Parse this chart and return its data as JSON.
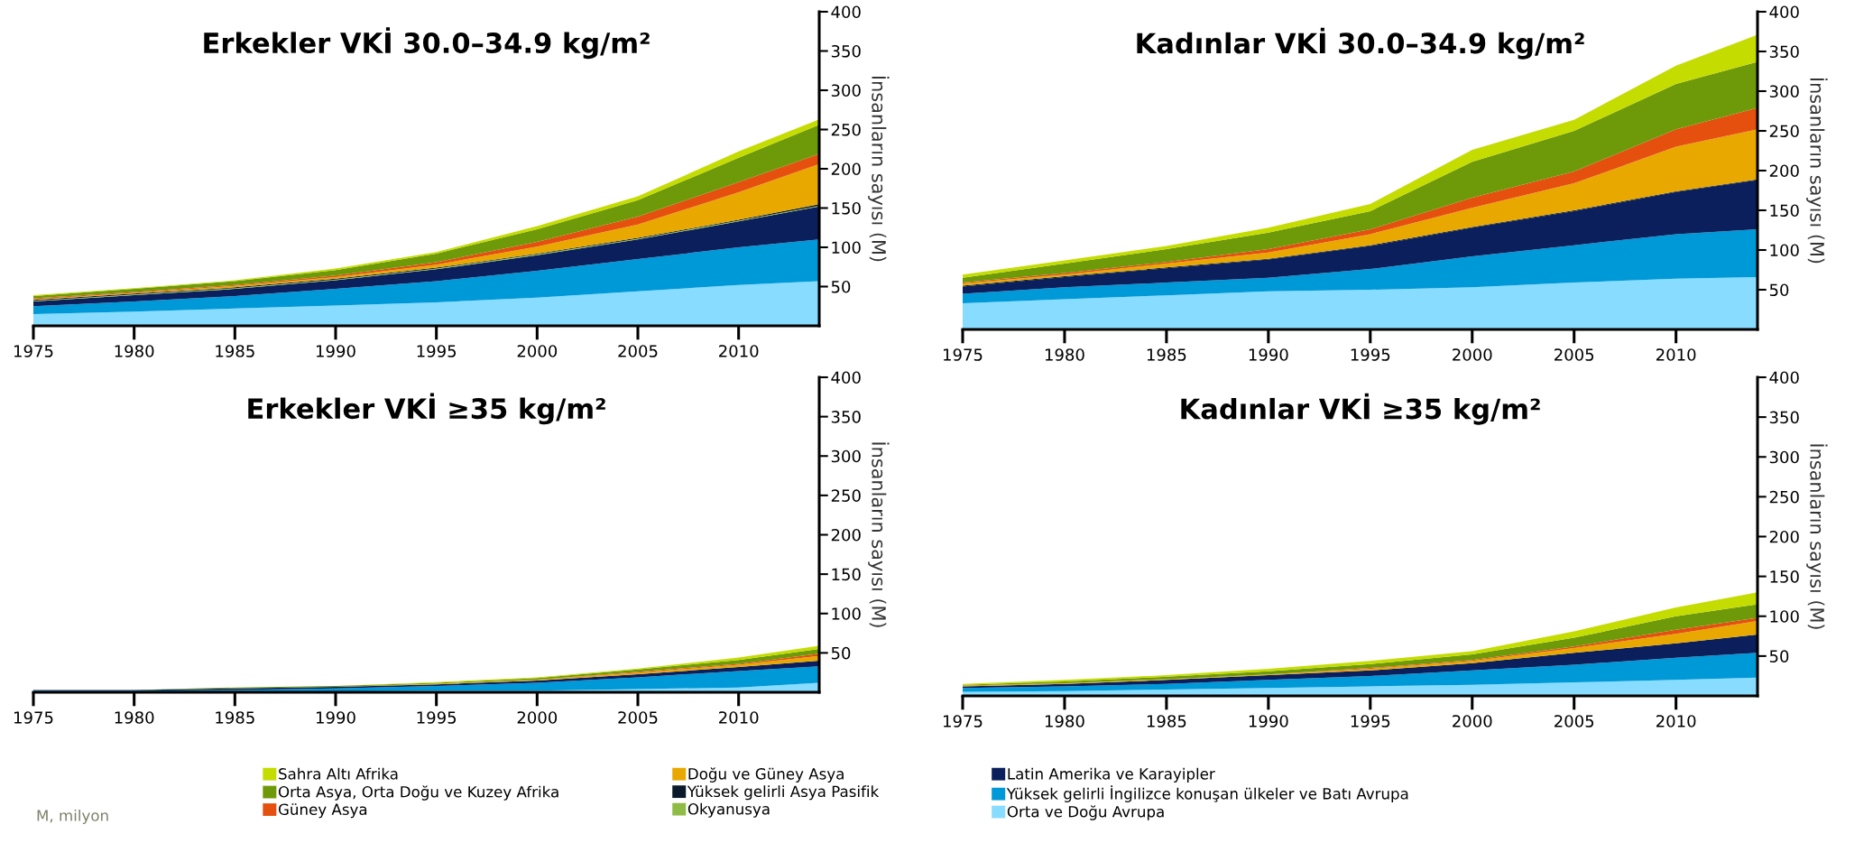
{
  "chart_data": [
    {
      "type": "area",
      "stacked": true,
      "title": "Erkekler VKİ 30.0–34.9 kg/m²",
      "ylabel": "İnsanların sayısı (M)",
      "x": [
        1975,
        1980,
        1985,
        1990,
        1995,
        2000,
        2005,
        2010,
        2014
      ],
      "xlim": [
        1975,
        2014
      ],
      "xticks": [
        1975,
        1980,
        1985,
        1990,
        1995,
        2000,
        2005,
        2010
      ],
      "ylim": [
        0,
        400
      ],
      "yticks": [
        50,
        100,
        150,
        200,
        250,
        300,
        350,
        400
      ],
      "grid": false,
      "legend": "bottom",
      "annotations": [
        "M, milyon"
      ],
      "series": [
        {
          "name": "Orta ve Doğu Avrupa",
          "color": "#87dcff",
          "values": [
            15,
            18,
            22,
            26,
            30,
            36,
            44,
            52,
            57
          ]
        },
        {
          "name": "Yüksek gelirli İngilizce konuşan ülkeler ve Batı Avrupa",
          "color": "#0099d8",
          "values": [
            10,
            13,
            16,
            21,
            27,
            34,
            41,
            48,
            53
          ]
        },
        {
          "name": "Latin Amerika ve Karayipler",
          "color": "#0b1f5c",
          "values": [
            6,
            8,
            9,
            11,
            15,
            20,
            25,
            33,
            42
          ]
        },
        {
          "name": "Okyanusya",
          "color": "#8fbc45",
          "values": [
            1,
            1,
            1,
            1,
            1,
            1,
            1,
            1,
            1
          ]
        },
        {
          "name": "Yüksek gelirli Asya Pasifik",
          "color": "#0a1a2a",
          "values": [
            1,
            1,
            1,
            1,
            1,
            1,
            1,
            1,
            2
          ]
        },
        {
          "name": "Doğu ve Güney Asya",
          "color": "#e8a800",
          "values": [
            1,
            1,
            2,
            2,
            4,
            9,
            17,
            35,
            51
          ]
        },
        {
          "name": "Güney Asya",
          "color": "#e5500f",
          "values": [
            1,
            1,
            1,
            2,
            3,
            6,
            10,
            13,
            13
          ]
        },
        {
          "name": "Orta Asya, Orta Doğu ve Kuzey Afrika",
          "color": "#6e9a0a",
          "values": [
            3,
            4,
            5,
            7,
            11,
            16,
            21,
            31,
            37
          ]
        },
        {
          "name": "Sahra Altı Afrika",
          "color": "#c4dc00",
          "values": [
            1,
            1,
            1,
            2,
            2,
            4,
            5,
            8,
            7
          ]
        }
      ]
    },
    {
      "type": "area",
      "stacked": true,
      "title": "Kadınlar VKİ 30.0–34.9 kg/m²",
      "ylabel": "İnsanların sayısı (M)",
      "x": [
        1975,
        1980,
        1985,
        1990,
        1995,
        2000,
        2005,
        2010,
        2014
      ],
      "xlim": [
        1975,
        2014
      ],
      "xticks": [
        1975,
        1980,
        1985,
        1990,
        1995,
        2000,
        2005,
        2010
      ],
      "ylim": [
        0,
        400
      ],
      "yticks": [
        50,
        100,
        150,
        200,
        250,
        300,
        350,
        400
      ],
      "grid": false,
      "series": [
        {
          "color": "#87dcff",
          "values": [
            33,
            38,
            43,
            48,
            50,
            53,
            59,
            64,
            66
          ]
        },
        {
          "color": "#0099d8",
          "values": [
            12,
            15,
            16,
            17,
            26,
            39,
            47,
            56,
            60
          ]
        },
        {
          "color": "#0b1f5c",
          "values": [
            9,
            13,
            18,
            23,
            29,
            36,
            43,
            53,
            62
          ]
        },
        {
          "color": "#0a1a2a",
          "values": [
            1,
            1,
            1,
            1,
            1,
            1,
            1,
            1,
            1
          ]
        },
        {
          "color": "#e8a800",
          "values": [
            3,
            2,
            5,
            8,
            14,
            24,
            34,
            56,
            63
          ]
        },
        {
          "color": "#e5500f",
          "values": [
            1,
            2,
            2,
            4,
            6,
            13,
            15,
            22,
            27
          ]
        },
        {
          "color": "#6e9a0a",
          "values": [
            6,
            12,
            16,
            21,
            23,
            45,
            51,
            57,
            58
          ]
        },
        {
          "color": "#c4dc00",
          "values": [
            4,
            4,
            4,
            6,
            9,
            15,
            14,
            23,
            34
          ]
        }
      ]
    },
    {
      "type": "area",
      "stacked": true,
      "title": "Erkekler VKİ ≥35 kg/m²",
      "ylabel": "İnsanların sayısı (M)",
      "x": [
        1975,
        1980,
        1985,
        1990,
        1995,
        2000,
        2005,
        2010,
        2014
      ],
      "xlim": [
        1975,
        2014
      ],
      "xticks": [
        1975,
        1980,
        1985,
        1990,
        1995,
        2000,
        2005,
        2010
      ],
      "ylim": [
        0,
        400
      ],
      "yticks": [
        50,
        100,
        150,
        200,
        250,
        300,
        350,
        400
      ],
      "grid": false,
      "series": [
        {
          "color": "#87dcff",
          "values": [
            1,
            1,
            1,
            1,
            2,
            2,
            4,
            6,
            12
          ]
        },
        {
          "color": "#0099d8",
          "values": [
            1,
            1,
            2,
            4,
            6,
            10,
            15,
            21,
            21
          ]
        },
        {
          "color": "#0b1f5c",
          "values": [
            1,
            1,
            2,
            2,
            2,
            3,
            4,
            5,
            7
          ]
        },
        {
          "color": "#e8a800",
          "values": [
            0,
            0,
            0,
            0,
            1,
            1,
            2,
            3,
            6
          ]
        },
        {
          "color": "#e5500f",
          "values": [
            0,
            0,
            0,
            0,
            0,
            0,
            1,
            1,
            3
          ]
        },
        {
          "color": "#6e9a0a",
          "values": [
            0,
            0,
            1,
            1,
            1,
            2,
            3,
            5,
            6
          ]
        },
        {
          "color": "#c4dc00",
          "values": [
            0,
            0,
            0,
            0,
            1,
            1,
            1,
            3,
            4
          ]
        }
      ]
    },
    {
      "type": "area",
      "stacked": true,
      "title": "Kadınlar VKİ ≥35 kg/m²",
      "ylabel": "İnsanların sayısı (M)",
      "x": [
        1975,
        1980,
        1985,
        1990,
        1995,
        2000,
        2005,
        2010,
        2014
      ],
      "xlim": [
        1975,
        2014
      ],
      "xticks": [
        1975,
        1980,
        1985,
        1990,
        1995,
        2000,
        2005,
        2010
      ],
      "ylim": [
        0,
        400
      ],
      "yticks": [
        50,
        100,
        150,
        200,
        250,
        300,
        350,
        400
      ],
      "grid": false,
      "series": [
        {
          "color": "#87dcff",
          "values": [
            5,
            6,
            8,
            10,
            12,
            14,
            17,
            20,
            23
          ]
        },
        {
          "color": "#0099d8",
          "values": [
            5,
            6,
            7,
            10,
            13,
            18,
            22,
            28,
            31
          ]
        },
        {
          "color": "#0b1f5c",
          "values": [
            2,
            3,
            5,
            6,
            7,
            9,
            15,
            18,
            23
          ]
        },
        {
          "color": "#e8a800",
          "values": [
            1,
            1,
            1,
            1,
            2,
            3,
            6,
            12,
            17
          ]
        },
        {
          "color": "#e5500f",
          "values": [
            0,
            0,
            0,
            0,
            1,
            1,
            2,
            5,
            4
          ]
        },
        {
          "color": "#6e9a0a",
          "values": [
            1,
            2,
            3,
            4,
            5,
            7,
            11,
            17,
            17
          ]
        },
        {
          "color": "#c4dc00",
          "values": [
            1,
            2,
            2,
            3,
            4,
            4,
            8,
            11,
            15
          ]
        }
      ]
    }
  ]
}
